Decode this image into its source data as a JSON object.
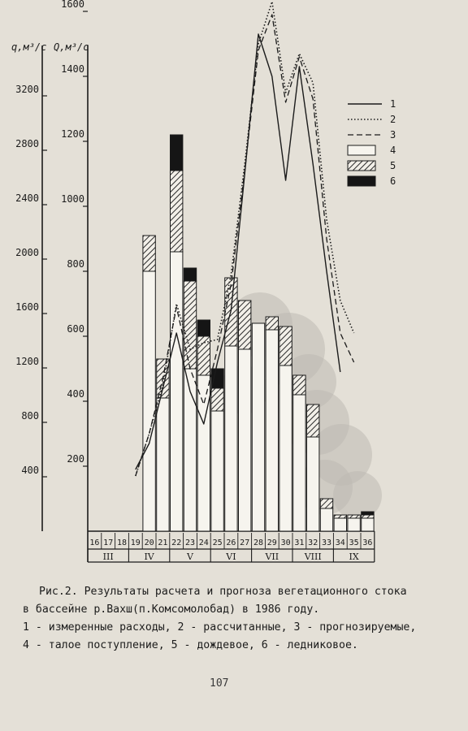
{
  "chart_data": {
    "type": "bar",
    "y_left_label": "q,м³/с",
    "y_right_label": "Q,м³/с",
    "y_left_ticks": [
      400,
      800,
      1200,
      1600,
      2000,
      2400,
      2800,
      3200
    ],
    "y_right_ticks": [
      200,
      400,
      600,
      800,
      1000,
      1200,
      1400,
      1600
    ],
    "y_right_range": [
      0,
      1700
    ],
    "decades": [
      "16",
      "17",
      "18",
      "19",
      "20",
      "21",
      "22",
      "23",
      "24",
      "25",
      "26",
      "27",
      "28",
      "29",
      "30",
      "31",
      "32",
      "33",
      "34",
      "35",
      "36"
    ],
    "months": [
      {
        "label": "III",
        "decades": 3
      },
      {
        "label": "IV",
        "decades": 3
      },
      {
        "label": "V",
        "decades": 3
      },
      {
        "label": "VI",
        "decades": 3
      },
      {
        "label": "VII",
        "decades": 3
      },
      {
        "label": "VIII",
        "decades": 3
      },
      {
        "label": "IX",
        "decades": 3
      }
    ],
    "series": [
      {
        "name": "1",
        "style": "solid"
      },
      {
        "name": "2",
        "style": "dotted"
      },
      {
        "name": "3",
        "style": "dashed"
      },
      {
        "name": "4",
        "style": "hollow-bar"
      },
      {
        "name": "5",
        "style": "hatched-bar"
      },
      {
        "name": "6",
        "style": "black-bar"
      }
    ],
    "bars": {
      "snowmelt": [
        0,
        0,
        0,
        0,
        800,
        410,
        860,
        500,
        480,
        370,
        570,
        560,
        640,
        620,
        510,
        420,
        290,
        70,
        40,
        40,
        40
      ],
      "rain": [
        0,
        0,
        0,
        0,
        110,
        120,
        250,
        270,
        120,
        70,
        210,
        150,
        0,
        40,
        120,
        60,
        100,
        30,
        10,
        10,
        10
      ],
      "glacier": [
        0,
        0,
        0,
        0,
        0,
        0,
        110,
        40,
        50,
        60,
        0,
        0,
        0,
        0,
        0,
        0,
        0,
        0,
        0,
        0,
        10
      ]
    },
    "lines": {
      "measured": [
        null,
        null,
        null,
        190,
        270,
        440,
        610,
        430,
        330,
        520,
        680,
        1100,
        1530,
        1400,
        1080,
        1430,
        1130,
        800,
        490,
        null,
        null
      ],
      "calculated": [
        null,
        null,
        null,
        170,
        300,
        450,
        700,
        560,
        580,
        590,
        790,
        1130,
        1500,
        1630,
        1350,
        1470,
        1380,
        960,
        710,
        610,
        null
      ],
      "forecast": [
        null,
        null,
        null,
        170,
        300,
        470,
        690,
        500,
        390,
        560,
        760,
        1110,
        1480,
        1590,
        1320,
        1460,
        1330,
        900,
        610,
        520,
        null
      ]
    }
  },
  "caption": {
    "line1": "Рис.2. Результаты расчета и прогноза вегетационного стока",
    "line2": "в бассейне р.Вахш(п.Комсомолобад) в 1986 году.",
    "line3": "1 - измеренные расходы, 2 - рассчитанные, 3 - прогнозируемые,",
    "line4": "4 - талое поступление, 5 - дождевое, 6 - ледниковое."
  },
  "page_number": "107",
  "colors": {
    "paper": "#e4e0d7",
    "ink": "#1b1b1b",
    "smudge": "#bdbab3"
  }
}
